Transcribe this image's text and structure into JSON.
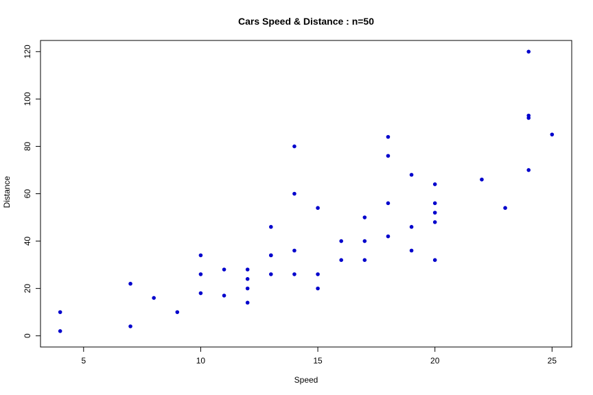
{
  "chart_data": {
    "type": "scatter",
    "title": "Cars Speed & Distance : n=50",
    "xlabel": "Speed",
    "ylabel": "Distance",
    "xlim": [
      3.16,
      25.84
    ],
    "ylim": [
      -4.72,
      124.72
    ],
    "x_ticks": [
      5,
      10,
      15,
      20,
      25
    ],
    "y_ticks": [
      0,
      20,
      40,
      60,
      80,
      100,
      120
    ],
    "grid": false,
    "legend": "none",
    "point_color": "#0000cc",
    "series": [
      {
        "x": [
          4,
          4,
          7,
          7,
          8,
          9,
          10,
          10,
          10,
          11,
          11,
          12,
          12,
          12,
          12,
          13,
          13,
          13,
          13,
          14,
          14,
          14,
          14,
          15,
          15,
          15,
          16,
          16,
          17,
          17,
          17,
          18,
          18,
          18,
          18,
          19,
          19,
          19,
          20,
          20,
          20,
          20,
          20,
          22,
          23,
          24,
          24,
          24,
          24,
          25
        ],
        "y": [
          2,
          10,
          4,
          22,
          16,
          10,
          18,
          26,
          34,
          17,
          28,
          14,
          20,
          24,
          28,
          26,
          34,
          34,
          46,
          26,
          36,
          60,
          80,
          20,
          26,
          54,
          32,
          40,
          32,
          40,
          50,
          42,
          56,
          76,
          84,
          36,
          46,
          68,
          32,
          48,
          52,
          56,
          64,
          66,
          54,
          70,
          92,
          93,
          120,
          85
        ]
      }
    ]
  }
}
